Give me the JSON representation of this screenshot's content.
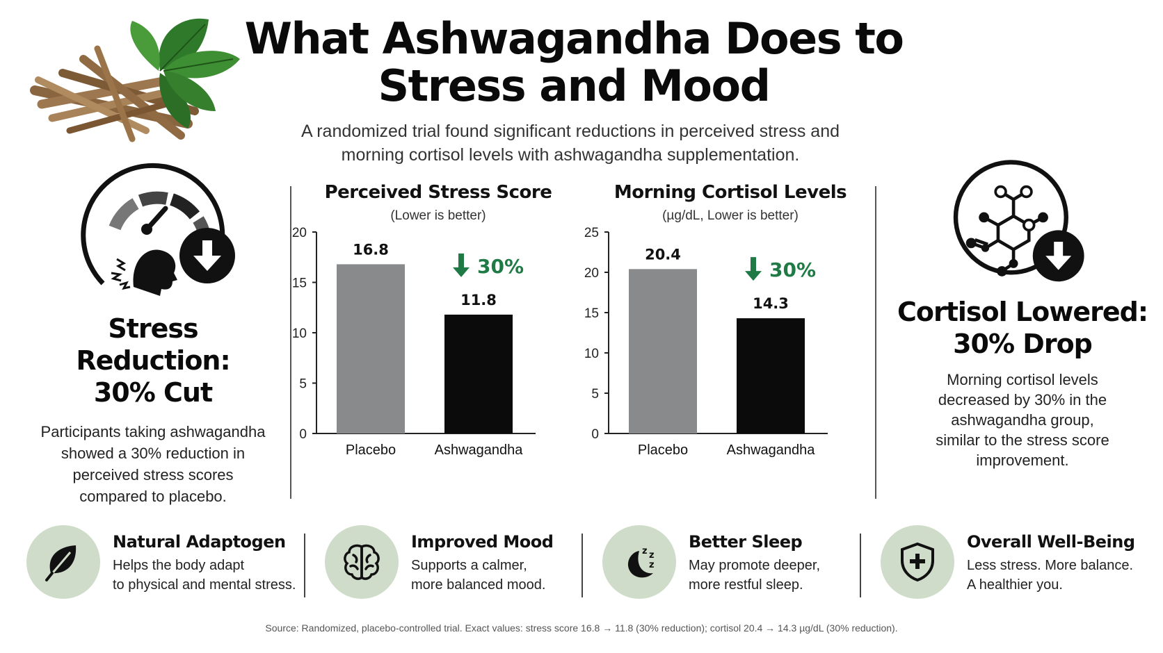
{
  "header": {
    "title_line1": "What Ashwagandha Does to",
    "title_line2": "Stress and Mood",
    "subtitle_line1": "A randomized trial found significant reductions in perceived stress and",
    "subtitle_line2": "morning cortisol levels with ashwagandha supplementation."
  },
  "left_panel": {
    "icon": "stress-gauge-icon",
    "heading_line1": "Stress Reduction:",
    "heading_line2": "30% Cut",
    "text_lines": [
      "Participants taking ashwagandha",
      "showed a 30% reduction in",
      "perceived stress scores",
      "compared to placebo."
    ]
  },
  "right_panel": {
    "icon": "molecule-icon",
    "heading_line1": "Cortisol Lowered:",
    "heading_line2": "30% Drop",
    "text_lines": [
      "Morning cortisol levels",
      "decreased by 30% in the",
      "ashwagandha group,",
      "similar to the stress score",
      "improvement."
    ]
  },
  "colors": {
    "placebo": "#888a8c",
    "ashwagandha": "#0b0b0b",
    "accent_green": "#1f7a45",
    "icon_bg": "#cfdcc9"
  },
  "chart_data": [
    {
      "type": "bar",
      "title": "Perceived Stress Score",
      "subtitle": "(Lower is better)",
      "categories": [
        "Placebo",
        "Ashwagandha"
      ],
      "values": [
        16.8,
        11.8
      ],
      "value_labels": [
        "16.8",
        "11.8"
      ],
      "ylim": [
        0,
        20
      ],
      "yticks": [
        0,
        5,
        10,
        15,
        20
      ],
      "annotation": "30%",
      "grid": false
    },
    {
      "type": "bar",
      "title": "Morning Cortisol Levels",
      "subtitle": "(µg/dL, Lower is better)",
      "categories": [
        "Placebo",
        "Ashwagandha"
      ],
      "values": [
        20.4,
        14.3
      ],
      "value_labels": [
        "20.4",
        "14.3"
      ],
      "ylim": [
        0,
        25
      ],
      "yticks": [
        0,
        5,
        10,
        15,
        20,
        25
      ],
      "annotation": "30%",
      "grid": false
    }
  ],
  "features": [
    {
      "icon": "leaf-icon",
      "title": "Natural Adaptogen",
      "line1": "Helps the body adapt",
      "line2": "to physical and mental stress."
    },
    {
      "icon": "brain-icon",
      "title": "Improved Mood",
      "line1": "Supports a calmer,",
      "line2": "more balanced mood."
    },
    {
      "icon": "moon-sleep-icon",
      "title": "Better Sleep",
      "line1": "May promote deeper,",
      "line2": "more restful sleep."
    },
    {
      "icon": "shield-plus-icon",
      "title": "Overall Well-Being",
      "line1": "Less stress. More balance.",
      "line2": "A healthier you."
    }
  ],
  "source": "Source: Randomized, placebo-controlled trial. Exact values: stress score 16.8 → 11.8 (30% reduction); cortisol 20.4 → 14.3 µg/dL (30% reduction)."
}
